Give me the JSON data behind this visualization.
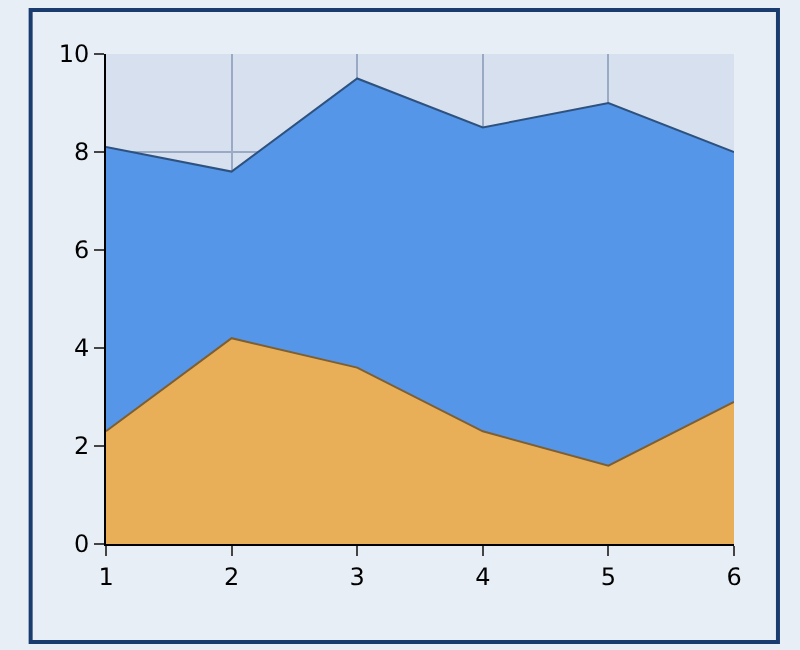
{
  "chart_data": {
    "type": "area",
    "x": [
      1,
      2,
      3,
      4,
      5,
      6
    ],
    "series": [
      {
        "color": "#5596e8",
        "values": [
          8.1,
          7.6,
          9.5,
          8.5,
          9.0,
          8.0
        ]
      },
      {
        "color": "#e8ae58",
        "values": [
          2.3,
          4.2,
          3.6,
          2.3,
          1.6,
          2.9
        ]
      }
    ],
    "xlim": [
      1,
      6
    ],
    "xticks": [
      1,
      2,
      3,
      4,
      5,
      6
    ],
    "ylim": [
      0,
      10
    ],
    "yticks": [
      0,
      2,
      4,
      6,
      8,
      10
    ],
    "grid": true
  }
}
